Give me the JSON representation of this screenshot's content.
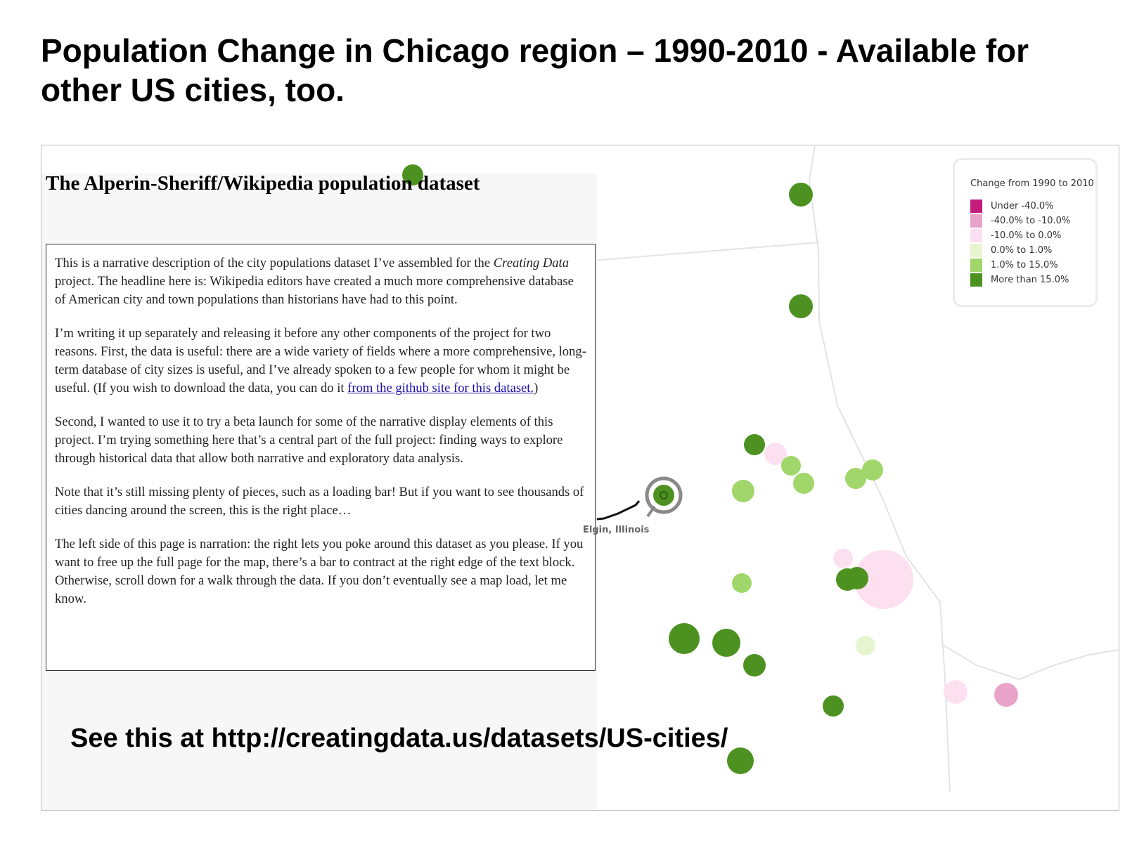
{
  "slide": {
    "title": "Population Change in Chicago region – 1990-2010  - Available for other US cities, too.",
    "footer": "See this at http://creatingdata.us/datasets/US-cities/"
  },
  "panel": {
    "title": "The Alperin-Sheriff/Wikipedia population dataset",
    "paragraphs": {
      "p1_a": "This is a narrative description of the city populations dataset I’ve assembled for the ",
      "p1_em": "Creating Data",
      "p1_b": " project. The headline here is: Wikipedia editors have created a much more comprehensive database of American city and town populations than historians have had to this point.",
      "p2_a": "I’m writing it up separately and releasing it before any other components of the project for two reasons. First, the data is useful: there are a wide variety of fields where a more comprehensive, long-term database of city sizes is useful, and I’ve already spoken to a few people for whom it might be useful. (If you wish to download the data, you can do it ",
      "p2_link": "from the github site for this dataset.",
      "p2_b": ")",
      "p3": "Second, I wanted to use it to try a beta launch for some of the narrative display elements of this project. I’m trying something here that’s a central part of the full project: finding ways to explore through historical data that allow both narrative and exploratory data analysis.",
      "p4": "Note that it’s still missing plenty of pieces, such as a loading bar! But if you want to see thousands of cities dancing around the screen, this is the right place…",
      "p5": "The left side of this page is narration: the right lets you poke around this dataset as you please. If you want to free up the full page for the map, there’s a bar to contract at the right edge of the text block. Otherwise, scroll down for a walk through the data. If you don’t eventually see a map load, let me know."
    }
  },
  "legend": {
    "title": "Change from 1990 to 2010",
    "items": [
      {
        "label": "Under -40.0%",
        "color": "#c51b7d"
      },
      {
        "label": "-40.0% to -10.0%",
        "color": "#e9a3c9"
      },
      {
        "label": "-10.0% to 0.0%",
        "color": "#fde0ef"
      },
      {
        "label": "0.0% to 1.0%",
        "color": "#e6f5d0"
      },
      {
        "label": "1.0% to 15.0%",
        "color": "#a1d76a"
      },
      {
        "label": "More than 15.0%",
        "color": "#4d9221"
      }
    ]
  },
  "map": {
    "highlighted_city": "Elgin, Illinois",
    "cities": [
      {
        "category": 5
      },
      {
        "category": 5
      },
      {
        "category": 5
      },
      {
        "category": 5
      },
      {
        "category": 2
      },
      {
        "category": 4
      },
      {
        "category": 4
      },
      {
        "category": 4
      },
      {
        "category": 4
      },
      {
        "category": 4
      },
      {
        "category": 5
      },
      {
        "category": 2
      },
      {
        "category": 2
      },
      {
        "category": 5
      },
      {
        "category": 5
      },
      {
        "category": 4
      },
      {
        "category": 5
      },
      {
        "category": 5
      },
      {
        "category": 5
      },
      {
        "category": 3
      },
      {
        "category": 5
      },
      {
        "category": 2
      },
      {
        "category": 1
      },
      {
        "category": 5
      },
      {
        "category": 5
      },
      {
        "category": 3
      }
    ]
  }
}
